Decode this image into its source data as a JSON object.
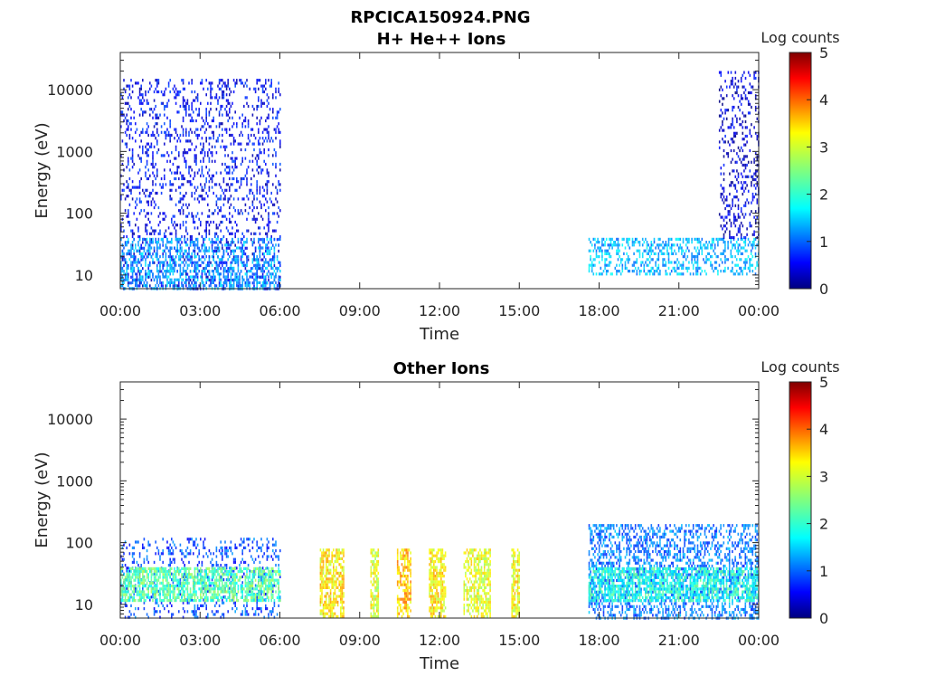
{
  "figure_title": "RPCICA150924.PNG",
  "colorbar_scale": {
    "label": "Log counts",
    "ticks": [
      "0",
      "1",
      "2",
      "3",
      "4",
      "5"
    ],
    "colormap": "jet"
  },
  "chart_data": [
    {
      "type": "heatmap",
      "title": "H+ He++ Ions",
      "xlabel": "Time",
      "ylabel": "Energy (eV)",
      "x_tick_labels": [
        "00:00",
        "03:00",
        "06:00",
        "09:00",
        "12:00",
        "15:00",
        "18:00",
        "21:00",
        "00:00"
      ],
      "xlim_hours": [
        0,
        24
      ],
      "y_scale": "log",
      "y_tick_labels": [
        "10",
        "100",
        "1000",
        "10000"
      ],
      "ylim": [
        6,
        40000
      ],
      "clim": [
        0,
        5
      ],
      "colorbar_label": "Log counts",
      "regions": [
        {
          "t_start_h": 0.0,
          "t_end_h": 6.0,
          "e_min": 6,
          "e_max": 15000,
          "log_counts": 0.6
        },
        {
          "t_start_h": 0.0,
          "t_end_h": 6.0,
          "e_min": 6,
          "e_max": 40,
          "log_counts": 1.4
        },
        {
          "t_start_h": 17.6,
          "t_end_h": 24.0,
          "e_min": 10,
          "e_max": 40,
          "log_counts": 1.5
        },
        {
          "t_start_h": 22.5,
          "t_end_h": 24.0,
          "e_min": 40,
          "e_max": 20000,
          "log_counts": 0.4
        }
      ]
    },
    {
      "type": "heatmap",
      "title": "Other Ions",
      "xlabel": "Time",
      "ylabel": "Energy (eV)",
      "x_tick_labels": [
        "00:00",
        "03:00",
        "06:00",
        "09:00",
        "12:00",
        "15:00",
        "18:00",
        "21:00",
        "00:00"
      ],
      "xlim_hours": [
        0,
        24
      ],
      "y_scale": "log",
      "y_tick_labels": [
        "10",
        "100",
        "1000",
        "10000"
      ],
      "ylim": [
        6,
        40000
      ],
      "clim": [
        0,
        5
      ],
      "colorbar_label": "Log counts",
      "regions": [
        {
          "t_start_h": 0.0,
          "t_end_h": 6.0,
          "e_min": 6,
          "e_max": 120,
          "log_counts": 1.0
        },
        {
          "t_start_h": 0.0,
          "t_end_h": 6.0,
          "e_min": 12,
          "e_max": 40,
          "log_counts": 2.3
        },
        {
          "t_start_h": 7.5,
          "t_end_h": 8.4,
          "e_min": 6,
          "e_max": 80,
          "log_counts": 3.2
        },
        {
          "t_start_h": 9.4,
          "t_end_h": 9.7,
          "e_min": 6,
          "e_max": 80,
          "log_counts": 3.0
        },
        {
          "t_start_h": 10.4,
          "t_end_h": 10.9,
          "e_min": 6,
          "e_max": 80,
          "log_counts": 3.4
        },
        {
          "t_start_h": 11.6,
          "t_end_h": 12.2,
          "e_min": 6,
          "e_max": 80,
          "log_counts": 3.2
        },
        {
          "t_start_h": 12.9,
          "t_end_h": 13.9,
          "e_min": 6,
          "e_max": 80,
          "log_counts": 3.0
        },
        {
          "t_start_h": 14.7,
          "t_end_h": 15.0,
          "e_min": 6,
          "e_max": 80,
          "log_counts": 3.1
        },
        {
          "t_start_h": 17.6,
          "t_end_h": 24.0,
          "e_min": 6,
          "e_max": 200,
          "log_counts": 1.2
        },
        {
          "t_start_h": 17.6,
          "t_end_h": 24.0,
          "e_min": 12,
          "e_max": 40,
          "log_counts": 2.0
        }
      ]
    }
  ]
}
